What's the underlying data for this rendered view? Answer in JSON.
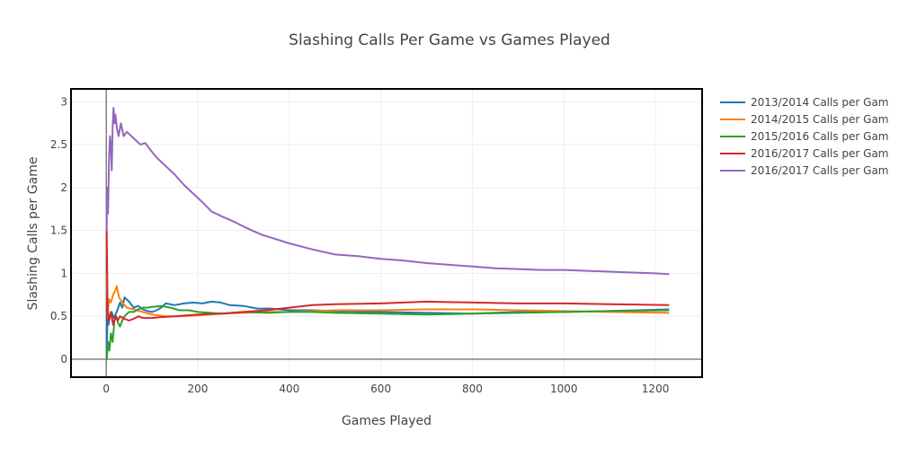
{
  "chart_data": {
    "type": "line",
    "title": "Slashing Calls Per Game vs Games Played",
    "xlabel": "Games Played",
    "ylabel": "Slashing Calls per Game",
    "xlim": [
      -75,
      1302
    ],
    "ylim": [
      -0.21,
      3.14
    ],
    "xticks": [
      0,
      200,
      400,
      600,
      800,
      1000,
      1200
    ],
    "yticks": [
      0,
      0.5,
      1,
      1.5,
      2,
      2.5,
      3
    ],
    "xtick_labels": [
      "0",
      "200",
      "400",
      "600",
      "800",
      "1000",
      "1200"
    ],
    "ytick_labels": [
      "0",
      "0.5",
      "1",
      "1.5",
      "2",
      "2.5",
      "3"
    ],
    "grid": true,
    "legend_position": "right",
    "series": [
      {
        "name": "2013/2014 Calls per Gam",
        "color": "#1f77b4",
        "points": [
          [
            1,
            0.0
          ],
          [
            3,
            0.67
          ],
          [
            5,
            0.4
          ],
          [
            8,
            0.5
          ],
          [
            12,
            0.55
          ],
          [
            16,
            0.48
          ],
          [
            20,
            0.52
          ],
          [
            25,
            0.58
          ],
          [
            30,
            0.66
          ],
          [
            35,
            0.6
          ],
          [
            40,
            0.72
          ],
          [
            50,
            0.67
          ],
          [
            60,
            0.6
          ],
          [
            70,
            0.62
          ],
          [
            80,
            0.58
          ],
          [
            90,
            0.56
          ],
          [
            100,
            0.55
          ],
          [
            110,
            0.57
          ],
          [
            120,
            0.6
          ],
          [
            130,
            0.65
          ],
          [
            150,
            0.63
          ],
          [
            170,
            0.65
          ],
          [
            190,
            0.66
          ],
          [
            210,
            0.65
          ],
          [
            230,
            0.67
          ],
          [
            250,
            0.66
          ],
          [
            270,
            0.63
          ],
          [
            300,
            0.62
          ],
          [
            330,
            0.59
          ],
          [
            360,
            0.59
          ],
          [
            400,
            0.57
          ],
          [
            450,
            0.57
          ],
          [
            500,
            0.56
          ],
          [
            600,
            0.55
          ],
          [
            700,
            0.54
          ],
          [
            800,
            0.53
          ],
          [
            900,
            0.55
          ],
          [
            1000,
            0.55
          ],
          [
            1100,
            0.56
          ],
          [
            1230,
            0.58
          ]
        ]
      },
      {
        "name": "2014/2015 Calls per Gam",
        "color": "#ff7f0e",
        "points": [
          [
            1,
            1.0
          ],
          [
            3,
            0.5
          ],
          [
            6,
            0.7
          ],
          [
            10,
            0.66
          ],
          [
            15,
            0.75
          ],
          [
            20,
            0.8
          ],
          [
            23,
            0.85
          ],
          [
            28,
            0.72
          ],
          [
            35,
            0.66
          ],
          [
            45,
            0.6
          ],
          [
            60,
            0.58
          ],
          [
            80,
            0.55
          ],
          [
            100,
            0.52
          ],
          [
            130,
            0.5
          ],
          [
            160,
            0.5
          ],
          [
            200,
            0.51
          ],
          [
            250,
            0.53
          ],
          [
            300,
            0.54
          ],
          [
            350,
            0.55
          ],
          [
            400,
            0.55
          ],
          [
            450,
            0.56
          ],
          [
            500,
            0.57
          ],
          [
            600,
            0.57
          ],
          [
            700,
            0.58
          ],
          [
            800,
            0.58
          ],
          [
            900,
            0.57
          ],
          [
            1000,
            0.56
          ],
          [
            1100,
            0.55
          ],
          [
            1230,
            0.54
          ]
        ]
      },
      {
        "name": "2015/2016 Calls per Gam",
        "color": "#2ca02c",
        "points": [
          [
            1,
            0.0
          ],
          [
            4,
            0.2
          ],
          [
            7,
            0.1
          ],
          [
            10,
            0.3
          ],
          [
            14,
            0.2
          ],
          [
            18,
            0.45
          ],
          [
            22,
            0.5
          ],
          [
            26,
            0.42
          ],
          [
            30,
            0.38
          ],
          [
            35,
            0.45
          ],
          [
            40,
            0.5
          ],
          [
            50,
            0.55
          ],
          [
            60,
            0.55
          ],
          [
            70,
            0.58
          ],
          [
            80,
            0.6
          ],
          [
            90,
            0.6
          ],
          [
            100,
            0.61
          ],
          [
            120,
            0.62
          ],
          [
            140,
            0.6
          ],
          [
            160,
            0.57
          ],
          [
            180,
            0.57
          ],
          [
            200,
            0.55
          ],
          [
            250,
            0.53
          ],
          [
            300,
            0.55
          ],
          [
            350,
            0.54
          ],
          [
            400,
            0.55
          ],
          [
            450,
            0.55
          ],
          [
            500,
            0.54
          ],
          [
            600,
            0.53
          ],
          [
            700,
            0.52
          ],
          [
            800,
            0.53
          ],
          [
            900,
            0.54
          ],
          [
            1000,
            0.55
          ],
          [
            1100,
            0.56
          ],
          [
            1230,
            0.57
          ]
        ]
      },
      {
        "name": "2016/2017 Calls per Gam",
        "color": "#d62728",
        "points": [
          [
            1,
            1.5
          ],
          [
            3,
            0.55
          ],
          [
            6,
            0.45
          ],
          [
            10,
            0.55
          ],
          [
            15,
            0.4
          ],
          [
            20,
            0.5
          ],
          [
            25,
            0.45
          ],
          [
            30,
            0.5
          ],
          [
            40,
            0.47
          ],
          [
            50,
            0.45
          ],
          [
            60,
            0.47
          ],
          [
            70,
            0.5
          ],
          [
            80,
            0.48
          ],
          [
            100,
            0.48
          ],
          [
            120,
            0.49
          ],
          [
            150,
            0.5
          ],
          [
            200,
            0.52
          ],
          [
            250,
            0.53
          ],
          [
            300,
            0.55
          ],
          [
            350,
            0.57
          ],
          [
            400,
            0.6
          ],
          [
            450,
            0.63
          ],
          [
            500,
            0.64
          ],
          [
            600,
            0.65
          ],
          [
            700,
            0.67
          ],
          [
            800,
            0.66
          ],
          [
            900,
            0.65
          ],
          [
            1000,
            0.65
          ],
          [
            1100,
            0.64
          ],
          [
            1230,
            0.63
          ]
        ]
      },
      {
        "name": "2016/2017 Calls per Gam",
        "color": "#9467bd",
        "points": [
          [
            1,
            1.5
          ],
          [
            2,
            2.0
          ],
          [
            4,
            1.7
          ],
          [
            6,
            2.3
          ],
          [
            8,
            2.6
          ],
          [
            10,
            2.5
          ],
          [
            12,
            2.2
          ],
          [
            14,
            2.7
          ],
          [
            16,
            2.93
          ],
          [
            18,
            2.75
          ],
          [
            20,
            2.85
          ],
          [
            23,
            2.7
          ],
          [
            27,
            2.6
          ],
          [
            32,
            2.75
          ],
          [
            38,
            2.6
          ],
          [
            45,
            2.65
          ],
          [
            55,
            2.6
          ],
          [
            65,
            2.55
          ],
          [
            75,
            2.5
          ],
          [
            85,
            2.52
          ],
          [
            95,
            2.45
          ],
          [
            110,
            2.35
          ],
          [
            130,
            2.25
          ],
          [
            150,
            2.15
          ],
          [
            170,
            2.03
          ],
          [
            190,
            1.93
          ],
          [
            210,
            1.83
          ],
          [
            230,
            1.72
          ],
          [
            250,
            1.67
          ],
          [
            280,
            1.6
          ],
          [
            310,
            1.52
          ],
          [
            340,
            1.45
          ],
          [
            370,
            1.4
          ],
          [
            400,
            1.35
          ],
          [
            450,
            1.28
          ],
          [
            500,
            1.22
          ],
          [
            550,
            1.2
          ],
          [
            600,
            1.17
          ],
          [
            650,
            1.15
          ],
          [
            700,
            1.12
          ],
          [
            750,
            1.1
          ],
          [
            800,
            1.08
          ],
          [
            850,
            1.06
          ],
          [
            900,
            1.05
          ],
          [
            950,
            1.04
          ],
          [
            1000,
            1.04
          ],
          [
            1050,
            1.03
          ],
          [
            1100,
            1.02
          ],
          [
            1150,
            1.01
          ],
          [
            1200,
            1.0
          ],
          [
            1230,
            0.99
          ]
        ]
      }
    ]
  }
}
